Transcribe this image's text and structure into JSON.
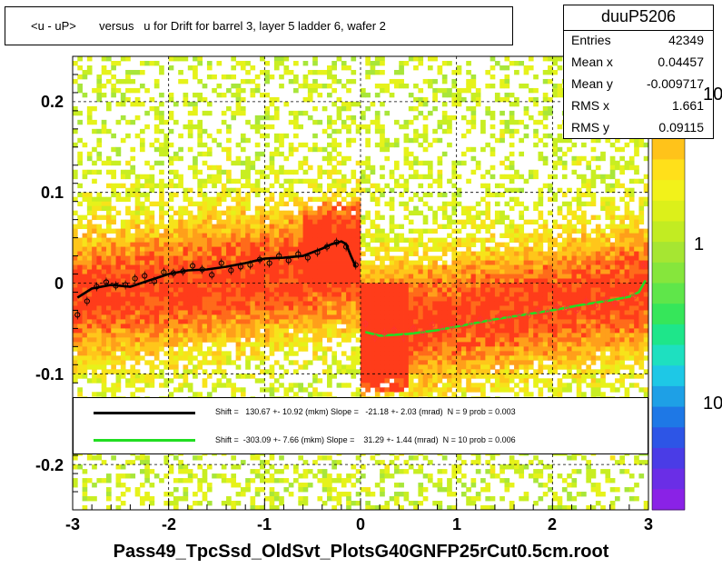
{
  "title": "<u - uP>       versus   u for Drift for barrel 3, layer 5 ladder 6, wafer 2",
  "xtitle": "Pass49_TpcSsd_OldSvt_PlotsG40GNFP25rCut0.5cm.root",
  "stats": {
    "name": "duuP5206",
    "rows": [
      {
        "key": "Entries",
        "value": "42349"
      },
      {
        "key": "Mean x",
        "value": "0.04457"
      },
      {
        "key": "Mean y",
        "value": "-0.009717"
      },
      {
        "key": "RMS x",
        "value": "1.661"
      },
      {
        "key": "RMS y",
        "value": "0.09115"
      }
    ]
  },
  "legend": [
    {
      "color": "#000000",
      "text": "Shift =   130.67 +- 10.92 (mkm) Slope =   -21.18 +- 2.03 (mrad)  N = 9 prob = 0.003"
    },
    {
      "color": "#22dd22",
      "text": "Shift =  -303.09 +- 7.66 (mkm) Slope =    31.29 +- 1.44 (mrad)  N = 10 prob = 0.006"
    }
  ],
  "zaxis": {
    "labels": [
      "10",
      "1",
      "10"
    ]
  },
  "chart_data": {
    "type": "heatmap",
    "title": "<u - uP>       versus   u for Drift for barrel 3, layer 5 ladder 6, wafer 2",
    "xlabel": "Pass49_TpcSsd_OldSvt_PlotsG40GNFP25rCut0.5cm.root",
    "ylabel": "",
    "xlim": [
      -3,
      3
    ],
    "ylim": [
      -0.25,
      0.25
    ],
    "xticks": [
      "-3",
      "-2",
      "-1",
      "0",
      "1",
      "2",
      "3"
    ],
    "yticks": [
      "-0.2",
      "-0.1",
      "0",
      "0.1",
      "0.2"
    ],
    "grid": true,
    "colorscale": "log",
    "series": [
      {
        "name": "Shift =   130.67 +- 10.92 (mkm) Slope =   -21.18 +- 2.03 (mrad)  N = 9 prob = 0.003",
        "color": "#000000",
        "x": [
          -2.95,
          -2.8,
          -2.6,
          -2.4,
          -2.2,
          -2.0,
          -1.8,
          -1.6,
          -1.4,
          -1.2,
          -1.0,
          -0.8,
          -0.6,
          -0.4,
          -0.3,
          -0.2,
          -0.15,
          -0.1,
          -0.05
        ],
        "y": [
          -0.016,
          -0.006,
          -0.002,
          -0.004,
          0.003,
          0.01,
          0.014,
          0.015,
          0.018,
          0.022,
          0.027,
          0.028,
          0.03,
          0.038,
          0.043,
          0.046,
          0.043,
          0.03,
          0.018
        ]
      },
      {
        "name": "Shift =  -303.09 +- 7.66 (mkm) Slope =    31.29 +- 1.44 (mrad)  N = 10 prob = 0.006",
        "color": "#22dd22",
        "x": [
          0.05,
          0.2,
          0.5,
          0.8,
          1.1,
          1.4,
          1.7,
          2.0,
          2.3,
          2.6,
          2.8,
          2.9,
          2.97
        ],
        "y": [
          -0.054,
          -0.058,
          -0.056,
          -0.052,
          -0.046,
          -0.04,
          -0.035,
          -0.03,
          -0.024,
          -0.019,
          -0.015,
          -0.01,
          0.003
        ]
      },
      {
        "name": "profile-left",
        "color": "#000000",
        "x": [
          -2.95,
          -2.85,
          -2.75,
          -2.65,
          -2.55,
          -2.45,
          -2.35,
          -2.25,
          -2.15,
          -2.05,
          -1.95,
          -1.85,
          -1.75,
          -1.65,
          -1.55,
          -1.45,
          -1.35,
          -1.25,
          -1.15,
          -1.05,
          -0.95,
          -0.85,
          -0.75,
          -0.65,
          -0.55,
          -0.45,
          -0.35,
          -0.25,
          -0.15,
          -0.05
        ],
        "y": [
          -0.035,
          -0.02,
          -0.004,
          0.001,
          -0.003,
          -0.002,
          0.005,
          0.008,
          0.002,
          0.012,
          0.011,
          0.013,
          0.019,
          0.015,
          0.009,
          0.022,
          0.014,
          0.018,
          0.02,
          0.026,
          0.022,
          0.03,
          0.025,
          0.032,
          0.028,
          0.034,
          0.04,
          0.045,
          0.04,
          0.02
        ]
      },
      {
        "name": "profile-right",
        "color": "#ff3333",
        "x": [
          0.05,
          0.15,
          0.25,
          0.35,
          0.45,
          0.55,
          0.65,
          0.75,
          0.85,
          0.95,
          1.05,
          1.15,
          1.25,
          1.35,
          1.45,
          1.55,
          1.65,
          1.75,
          1.85,
          1.95,
          2.05,
          2.15,
          2.25,
          2.35,
          2.45,
          2.55,
          2.65,
          2.75,
          2.85,
          2.95
        ],
        "y": [
          -0.045,
          -0.06,
          -0.055,
          -0.052,
          -0.06,
          -0.05,
          -0.055,
          -0.046,
          -0.05,
          -0.048,
          -0.044,
          -0.045,
          -0.04,
          -0.042,
          -0.036,
          -0.038,
          -0.034,
          -0.036,
          -0.03,
          -0.032,
          -0.026,
          -0.028,
          -0.03,
          -0.02,
          -0.025,
          -0.018,
          -0.022,
          -0.012,
          -0.015,
          0.02
        ]
      }
    ]
  }
}
